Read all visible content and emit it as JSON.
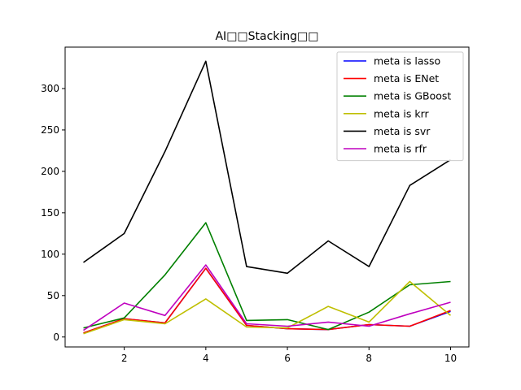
{
  "chart_data": {
    "type": "line",
    "title": "AI□□Stacking□□",
    "xlabel": "",
    "ylabel": "",
    "xlim": [
      0.55,
      10.45
    ],
    "ylim": [
      -12,
      350
    ],
    "xticks": [
      2,
      4,
      6,
      8,
      10
    ],
    "yticks": [
      0,
      50,
      100,
      150,
      200,
      250,
      300
    ],
    "grid": false,
    "legend_position": "top-right",
    "x": [
      1,
      2,
      3,
      4,
      5,
      6,
      7,
      8,
      9,
      10
    ],
    "series": [
      {
        "name": "meta is lasso",
        "color": "#0000ff",
        "values": [
          5,
          22,
          17,
          83,
          14,
          10,
          9,
          15,
          13,
          31
        ]
      },
      {
        "name": "meta is ENet",
        "color": "#ff0000",
        "values": [
          5,
          22,
          17,
          83,
          14,
          10,
          9,
          15,
          13,
          32
        ]
      },
      {
        "name": "meta is GBoost",
        "color": "#008000",
        "values": [
          11,
          23,
          75,
          138,
          20,
          21,
          9,
          30,
          63,
          67
        ]
      },
      {
        "name": "meta is krr",
        "color": "#bfbf00",
        "values": [
          4,
          21,
          16,
          46,
          12,
          11,
          37,
          18,
          67,
          26
        ]
      },
      {
        "name": "meta is svr",
        "color": "#000000",
        "values": [
          90,
          125,
          224,
          333,
          85,
          77,
          116,
          85,
          183,
          214
        ]
      },
      {
        "name": "meta is rfr",
        "color": "#bf00bf",
        "values": [
          8,
          41,
          26,
          87,
          16,
          13,
          18,
          13,
          28,
          42
        ]
      }
    ]
  }
}
